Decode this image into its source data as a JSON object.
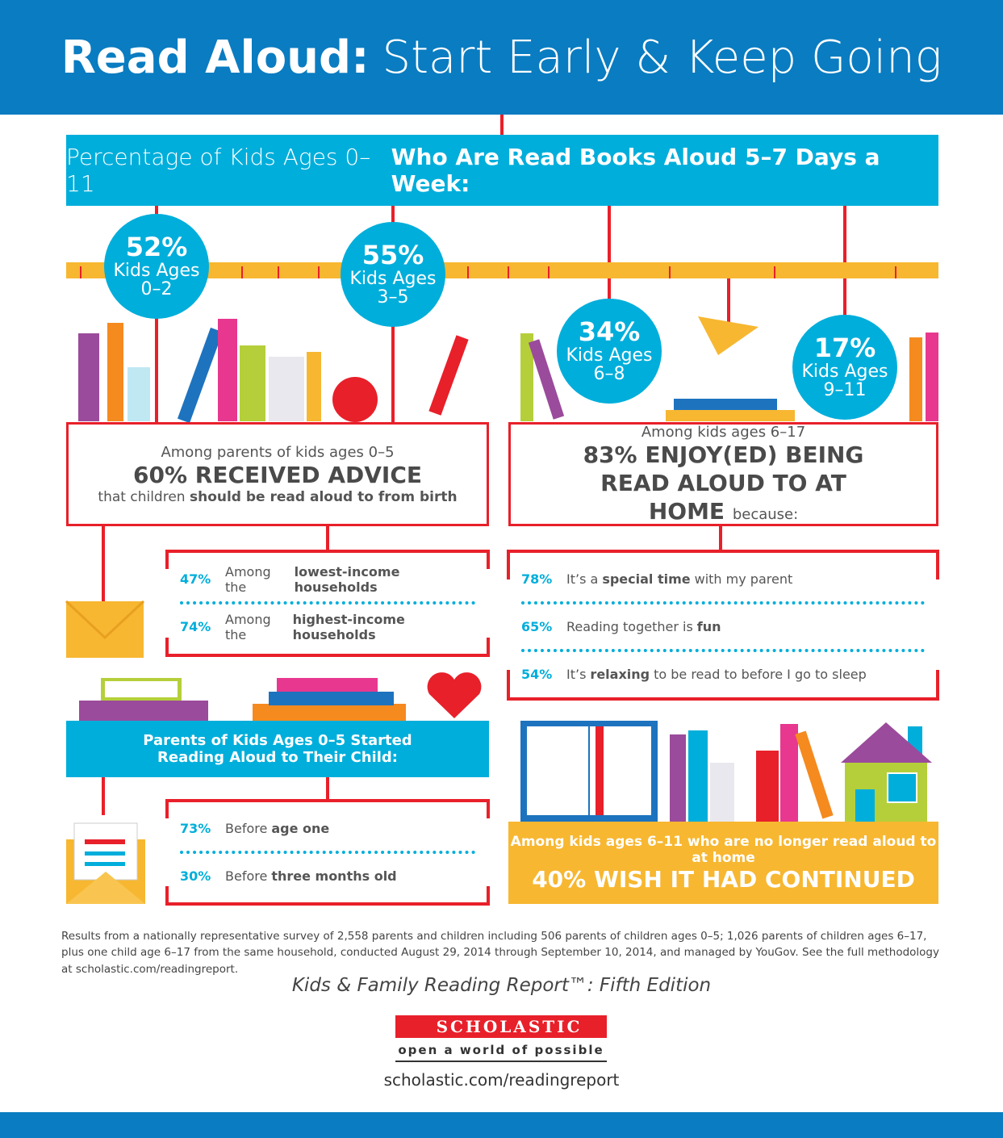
{
  "header": {
    "title_bold": "Read Aloud:",
    "title_light": "Start Early & Keep Going"
  },
  "banner": {
    "light": "Percentage of Kids Ages 0–11",
    "bold": "Who Are Read Books Aloud 5–7 Days a Week:"
  },
  "age_groups": [
    {
      "percent": "52%",
      "label": "Kids Ages",
      "ages": "0–2"
    },
    {
      "percent": "55%",
      "label": "Kids Ages",
      "ages": "3–5"
    },
    {
      "percent": "34%",
      "label": "Kids Ages",
      "ages": "6–8"
    },
    {
      "percent": "17%",
      "label": "Kids Ages",
      "ages": "9–11"
    }
  ],
  "advice": {
    "intro": "Among parents of kids ages 0–5",
    "headline": "60% RECEIVED ADVICE",
    "detail_light": "that children",
    "detail_bold": "should be read aloud to from birth"
  },
  "advice_breakdown": [
    {
      "percent": "47%",
      "parts": [
        {
          "text": "Among the"
        },
        {
          "text": "lowest-income households",
          "bold": true
        }
      ]
    },
    {
      "percent": "74%",
      "parts": [
        {
          "text": "Among the"
        },
        {
          "text": "highest-income households",
          "bold": true
        }
      ]
    }
  ],
  "enjoy": {
    "intro": "Among kids ages 6–17",
    "headline": "83% ENJOY(ED) BEING READ ALOUD TO AT HOME",
    "tail": "because:"
  },
  "reasons": [
    {
      "percent": "78%",
      "parts": [
        {
          "text": "It’s a"
        },
        {
          "text": "special time",
          "bold": true
        },
        {
          "text": "with my parent"
        }
      ]
    },
    {
      "percent": "65%",
      "parts": [
        {
          "text": "Reading together is"
        },
        {
          "text": "fun",
          "bold": true
        }
      ]
    },
    {
      "percent": "54%",
      "parts": [
        {
          "text": "It’s"
        },
        {
          "text": "relaxing",
          "bold": true
        },
        {
          "text": "to be read to before I go to sleep"
        }
      ]
    }
  ],
  "started": {
    "title": "Parents of Kids Ages 0–5 Started Reading Aloud to Their Child:"
  },
  "started_breakdown": [
    {
      "percent": "73%",
      "parts": [
        {
          "text": "Before"
        },
        {
          "text": "age one",
          "bold": true
        }
      ]
    },
    {
      "percent": "30%",
      "parts": [
        {
          "text": "Before"
        },
        {
          "text": "three months old",
          "bold": true
        }
      ]
    }
  ],
  "wish": {
    "intro": "Among kids ages 6–11 who are no longer read aloud to at home",
    "headline": "40% WISH IT HAD CONTINUED"
  },
  "footnote": "Results from a nationally representative survey of 2,558 parents and children including 506 parents of children ages 0–5; 1,026 parents of children ages 6–17, plus one child age 6–17 from the same household, conducted August 29, 2014 through September 10, 2014, and managed by YouGov. See the full methodology at scholastic.com/readingreport.",
  "report": "Kids & Family Reading Report™: Fifth Edition",
  "logo": {
    "brand": "SCHOLASTIC",
    "tagline": "open a world of possible"
  },
  "url": "scholastic.com/readingreport"
}
